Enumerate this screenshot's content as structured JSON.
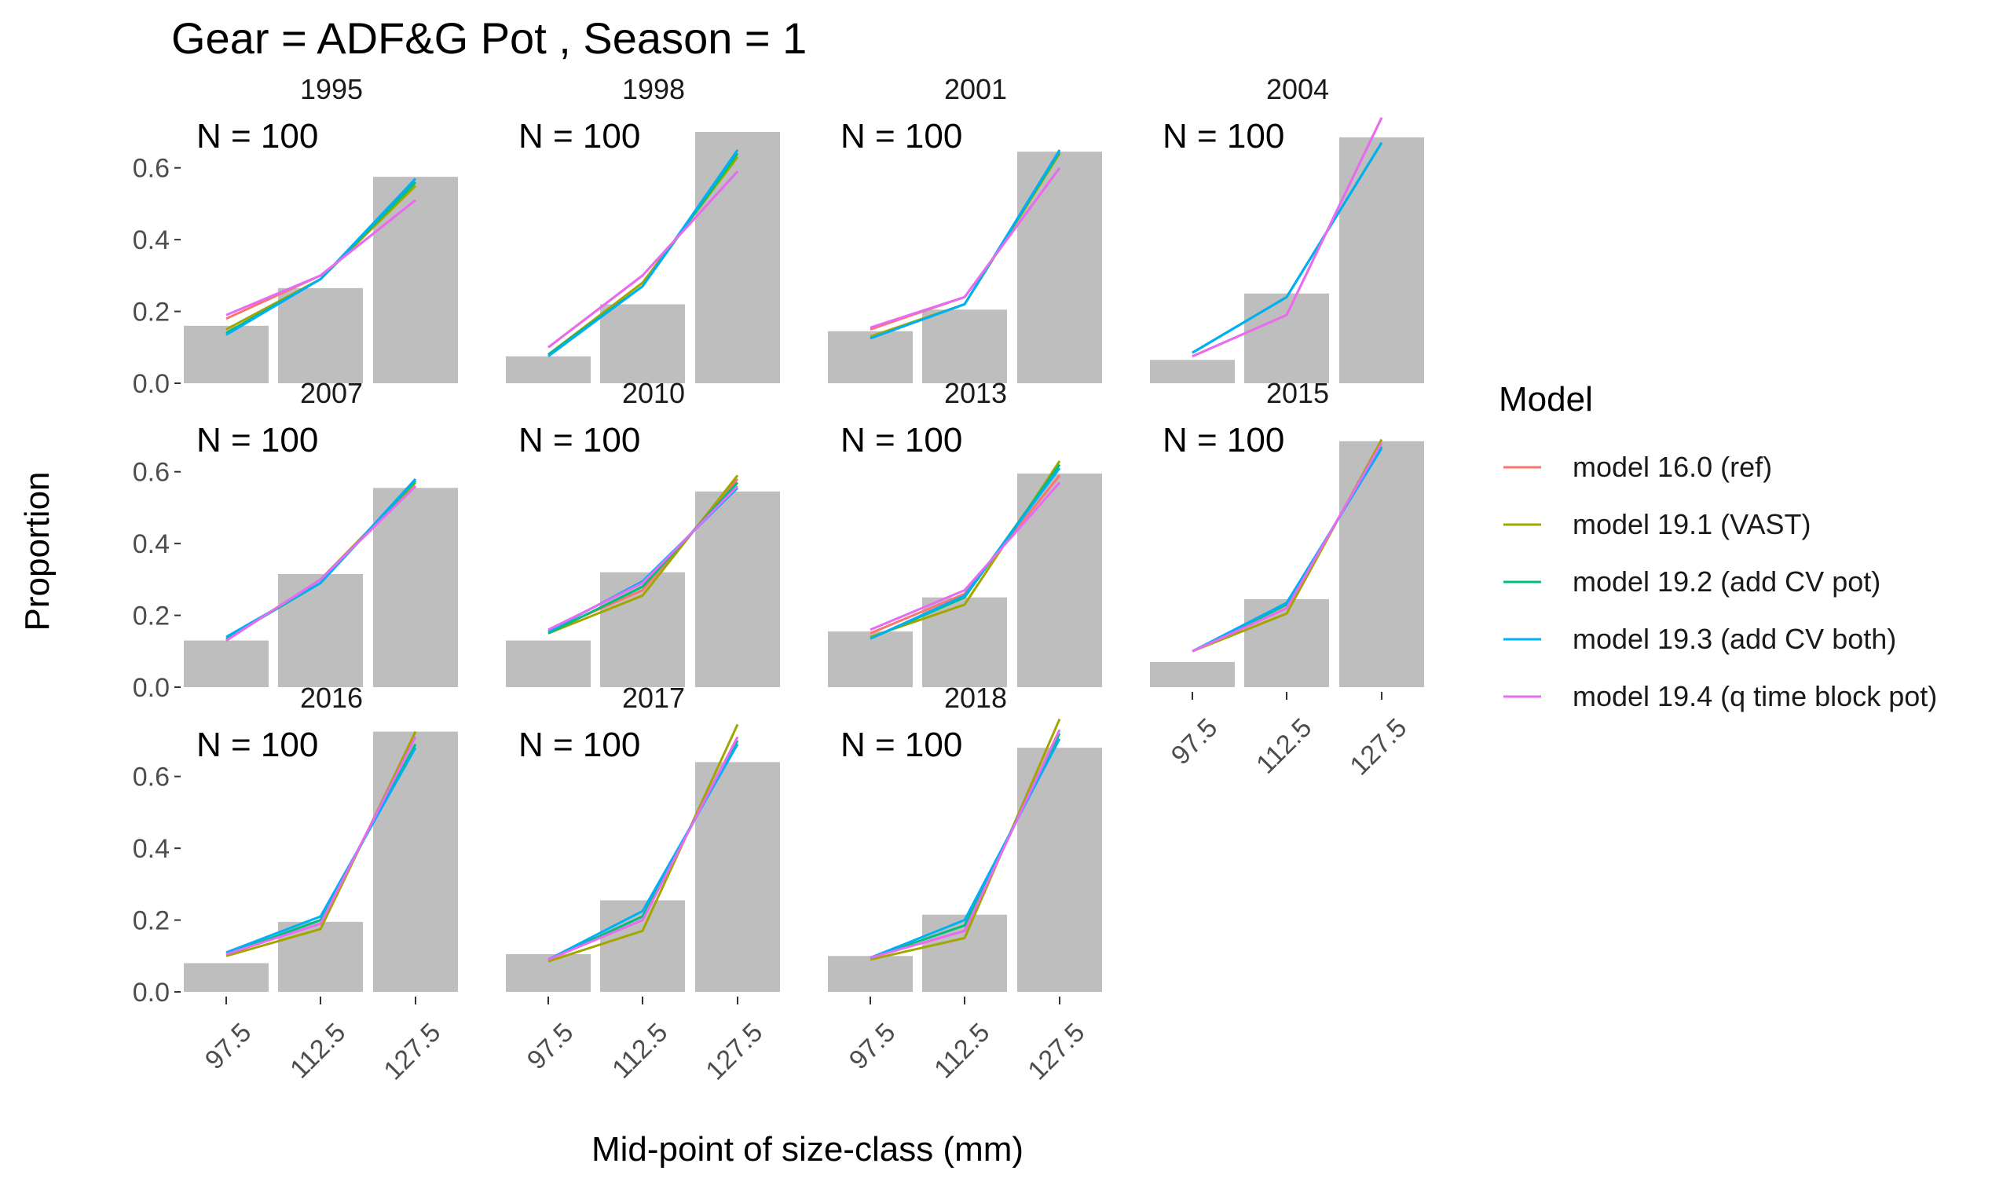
{
  "chart_data": {
    "type": "bar",
    "title": "Gear = ADF&G Pot , Season = 1",
    "xlabel": "Mid-point of size-class (mm)",
    "ylabel": "Proportion",
    "categories": [
      "97.5",
      "112.5",
      "127.5"
    ],
    "ylim": [
      0,
      0.7
    ],
    "yticks": [
      "0.0",
      "0.2",
      "0.4",
      "0.6"
    ],
    "legend_title": "Model",
    "legend_position": "right",
    "bar_color": "#bebebe",
    "models": [
      {
        "name": "model 16.0 (ref)",
        "color": "#F8766D"
      },
      {
        "name": "model 19.1 (VAST)",
        "color": "#A3A500"
      },
      {
        "name": "model 19.2 (add CV pot)",
        "color": "#00BF7D"
      },
      {
        "name": "model 19.3 (add CV both)",
        "color": "#00B0F6"
      },
      {
        "name": "model 19.4 (q time block pot)",
        "color": "#E76BF3"
      }
    ],
    "panels": [
      {
        "year": "1995",
        "label": "N = 100",
        "observed": [
          0.16,
          0.265,
          0.575
        ],
        "predicted": [
          [
            0.18,
            0.3,
            0.51
          ],
          [
            0.15,
            0.29,
            0.55
          ],
          [
            0.14,
            0.29,
            0.56
          ],
          [
            0.135,
            0.29,
            0.57
          ],
          [
            0.19,
            0.3,
            0.51
          ]
        ]
      },
      {
        "year": "1998",
        "label": "N = 100",
        "observed": [
          0.075,
          0.22,
          0.7
        ],
        "predicted": [
          [
            0.1,
            0.3,
            0.59
          ],
          [
            0.08,
            0.28,
            0.63
          ],
          [
            0.08,
            0.27,
            0.64
          ],
          [
            0.075,
            0.27,
            0.65
          ],
          [
            0.1,
            0.3,
            0.59
          ]
        ]
      },
      {
        "year": "2001",
        "label": "N = 100",
        "observed": [
          0.145,
          0.205,
          0.645
        ],
        "predicted": [
          [
            0.15,
            0.24,
            0.6
          ],
          [
            0.13,
            0.22,
            0.64
          ],
          [
            0.125,
            0.22,
            0.645
          ],
          [
            0.125,
            0.22,
            0.65
          ],
          [
            0.155,
            0.24,
            0.6
          ]
        ]
      },
      {
        "year": "2004",
        "label": "N = 100",
        "observed": [
          0.065,
          0.25,
          0.685
        ],
        "predicted": [
          [
            0.075,
            0.19,
            0.74
          ],
          [
            0.085,
            0.24,
            0.67
          ],
          [
            0.085,
            0.24,
            0.67
          ],
          [
            0.085,
            0.24,
            0.67
          ],
          [
            0.075,
            0.19,
            0.74
          ]
        ]
      },
      {
        "year": "2007",
        "label": "N = 100",
        "observed": [
          0.13,
          0.315,
          0.555
        ],
        "predicted": [
          [
            0.13,
            0.3,
            0.56
          ],
          [
            0.13,
            0.3,
            0.57
          ],
          [
            0.135,
            0.29,
            0.575
          ],
          [
            0.14,
            0.29,
            0.58
          ],
          [
            0.13,
            0.3,
            0.56
          ]
        ]
      },
      {
        "year": "2010",
        "label": "N = 100",
        "observed": [
          0.13,
          0.32,
          0.545
        ],
        "predicted": [
          [
            0.155,
            0.27,
            0.58
          ],
          [
            0.15,
            0.255,
            0.59
          ],
          [
            0.15,
            0.28,
            0.57
          ],
          [
            0.155,
            0.295,
            0.555
          ],
          [
            0.16,
            0.29,
            0.56
          ]
        ]
      },
      {
        "year": "2013",
        "label": "N = 100",
        "observed": [
          0.155,
          0.25,
          0.595
        ],
        "predicted": [
          [
            0.15,
            0.26,
            0.59
          ],
          [
            0.14,
            0.23,
            0.63
          ],
          [
            0.135,
            0.25,
            0.62
          ],
          [
            0.135,
            0.255,
            0.61
          ],
          [
            0.16,
            0.27,
            0.57
          ]
        ]
      },
      {
        "year": "2015",
        "label": "N = 100",
        "observed": [
          0.07,
          0.245,
          0.685
        ],
        "predicted": [
          [
            0.1,
            0.22,
            0.68
          ],
          [
            0.1,
            0.205,
            0.69
          ],
          [
            0.1,
            0.23,
            0.67
          ],
          [
            0.1,
            0.235,
            0.665
          ],
          [
            0.1,
            0.22,
            0.68
          ]
        ]
      },
      {
        "year": "2016",
        "label": "N = 100",
        "observed": [
          0.08,
          0.195,
          0.725
        ],
        "predicted": [
          [
            0.105,
            0.19,
            0.71
          ],
          [
            0.1,
            0.175,
            0.725
          ],
          [
            0.105,
            0.2,
            0.69
          ],
          [
            0.11,
            0.21,
            0.68
          ],
          [
            0.105,
            0.19,
            0.71
          ]
        ]
      },
      {
        "year": "2017",
        "label": "N = 100",
        "observed": [
          0.105,
          0.255,
          0.64
        ],
        "predicted": [
          [
            0.09,
            0.2,
            0.71
          ],
          [
            0.085,
            0.17,
            0.745
          ],
          [
            0.09,
            0.21,
            0.7
          ],
          [
            0.09,
            0.225,
            0.69
          ],
          [
            0.09,
            0.2,
            0.71
          ]
        ]
      },
      {
        "year": "2018",
        "label": "N = 100",
        "observed": [
          0.1,
          0.215,
          0.68
        ],
        "predicted": [
          [
            0.095,
            0.17,
            0.73
          ],
          [
            0.09,
            0.15,
            0.76
          ],
          [
            0.095,
            0.185,
            0.72
          ],
          [
            0.095,
            0.2,
            0.705
          ],
          [
            0.095,
            0.17,
            0.73
          ]
        ]
      }
    ]
  }
}
